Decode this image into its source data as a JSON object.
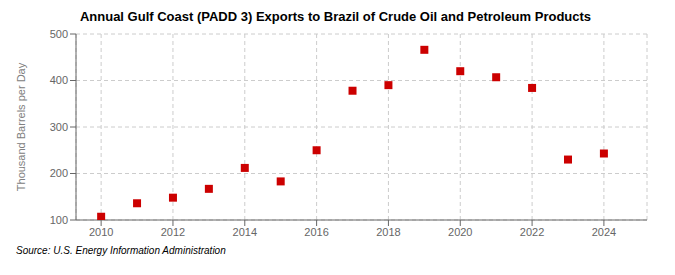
{
  "chart_data": {
    "type": "scatter",
    "title": "Annual Gulf Coast (PADD 3) Exports to Brazil of Crude Oil and Petroleum Products",
    "ylabel": "Thousand Barrels per Day",
    "annotations": [
      "Source: U.S. Energy Information Administration"
    ],
    "x": [
      2010,
      2011,
      2012,
      2013,
      2014,
      2015,
      2016,
      2017,
      2018,
      2019,
      2020,
      2021,
      2022,
      2023,
      2024
    ],
    "values": [
      107,
      136,
      148,
      167,
      212,
      183,
      250,
      378,
      390,
      466,
      420,
      407,
      384,
      230,
      243
    ],
    "color": "#cc0000",
    "marker": "square",
    "xlim": [
      2009.3,
      2025.2
    ],
    "xticks": [
      2010,
      2012,
      2014,
      2016,
      2018,
      2020,
      2022,
      2024
    ],
    "ylim": [
      100,
      500
    ],
    "yticks": [
      100,
      200,
      300,
      400,
      500
    ],
    "grid": true
  }
}
